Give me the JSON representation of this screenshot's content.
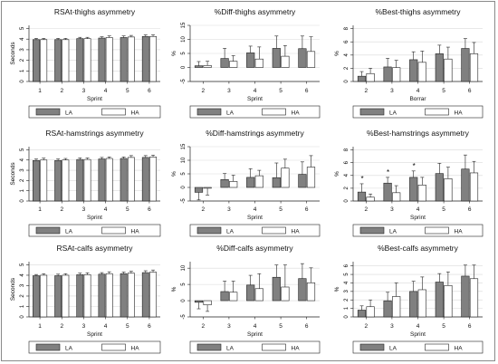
{
  "figure": {
    "colors": {
      "la_fill": "#808080",
      "ha_fill": "#ffffff",
      "stroke": "#222222",
      "grid": "#d9d9d9"
    },
    "legend_entries": [
      "LA",
      "HA"
    ]
  },
  "chart_data": [
    {
      "type": "bar",
      "title": "RSAt-thighs asymmetry",
      "xlabel": "Sprint",
      "ylabel": "Seconds",
      "categories": [
        "1",
        "2",
        "3",
        "4",
        "5",
        "6"
      ],
      "yticks": [
        0,
        1,
        2,
        3,
        4,
        5
      ],
      "ylim": [
        0,
        5.3
      ],
      "legend": "bottom",
      "grid": true,
      "series": [
        {
          "name": "LA",
          "values": [
            3.95,
            3.95,
            4.05,
            4.1,
            4.15,
            4.25
          ],
          "err": [
            0.12,
            0.12,
            0.12,
            0.12,
            0.15,
            0.15
          ]
        },
        {
          "name": "HA",
          "values": [
            3.95,
            3.95,
            4.05,
            4.15,
            4.2,
            4.25
          ],
          "err": [
            0.12,
            0.12,
            0.12,
            0.15,
            0.15,
            0.15
          ]
        }
      ]
    },
    {
      "type": "bar",
      "title": "%Diff-thighs asymmetry",
      "xlabel": "Sprint",
      "ylabel": "%",
      "categories": [
        "2",
        "3",
        "4",
        "5",
        "6"
      ],
      "yticks": [
        -5,
        0,
        5,
        10,
        15
      ],
      "ylim": [
        -5,
        15
      ],
      "legend": "bottom",
      "grid": true,
      "series": [
        {
          "name": "LA",
          "values": [
            0.6,
            3.2,
            5.2,
            6.8,
            6.7
          ],
          "err": [
            1.5,
            3.6,
            2.4,
            4.4,
            4.5
          ]
        },
        {
          "name": "HA",
          "values": [
            0.7,
            2.2,
            3.0,
            4.0,
            5.7
          ],
          "err": [
            1.5,
            2.0,
            4.3,
            3.8,
            5.2
          ]
        }
      ]
    },
    {
      "type": "bar",
      "title": "%Best-thighs asymmetry",
      "xlabel": "Borrar",
      "ylabel": "%",
      "categories": [
        "2",
        "3",
        "4",
        "5",
        "6"
      ],
      "yticks": [
        0,
        2,
        4,
        6,
        8
      ],
      "ylim": [
        0,
        8.5
      ],
      "legend": "bottom",
      "grid": true,
      "series": [
        {
          "name": "LA",
          "values": [
            0.8,
            2.2,
            3.3,
            4.2,
            5.0
          ],
          "err": [
            0.7,
            1.3,
            1.2,
            1.3,
            1.5
          ]
        },
        {
          "name": "HA",
          "values": [
            1.2,
            2.1,
            2.9,
            3.4,
            4.2
          ],
          "err": [
            0.8,
            1.1,
            1.7,
            1.8,
            1.7
          ]
        }
      ]
    },
    {
      "type": "bar",
      "title": "RSAt-hamstrings asymmetry",
      "xlabel": "Sprint",
      "ylabel": "Seconds",
      "categories": [
        "1",
        "2",
        "3",
        "4",
        "5",
        "6"
      ],
      "yticks": [
        0,
        1,
        2,
        3,
        4,
        5
      ],
      "ylim": [
        0,
        5.3
      ],
      "legend": "bottom",
      "grid": true,
      "series": [
        {
          "name": "LA",
          "values": [
            3.95,
            3.95,
            4.05,
            4.1,
            4.15,
            4.25
          ],
          "err": [
            0.15,
            0.15,
            0.15,
            0.15,
            0.15,
            0.18
          ]
        },
        {
          "name": "HA",
          "values": [
            4.0,
            4.0,
            4.05,
            4.15,
            4.25,
            4.3
          ],
          "err": [
            0.18,
            0.15,
            0.15,
            0.15,
            0.18,
            0.18
          ]
        }
      ]
    },
    {
      "type": "bar",
      "title": "%Diff-hamstrings asymmetry",
      "xlabel": "Sprint",
      "ylabel": "%",
      "categories": [
        "2",
        "3",
        "4",
        "5",
        "6"
      ],
      "yticks": [
        -5,
        0,
        5,
        10,
        15
      ],
      "ylim": [
        -5,
        15
      ],
      "legend": "bottom",
      "grid": true,
      "series": [
        {
          "name": "LA",
          "values": [
            -1.8,
            2.9,
            3.7,
            3.6,
            4.8
          ],
          "err": [
            2.8,
            2.2,
            3.2,
            5.4,
            4.6
          ]
        },
        {
          "name": "HA",
          "values": [
            -0.3,
            2.2,
            4.3,
            7.1,
            7.5
          ],
          "err": [
            2.5,
            2.3,
            2.0,
            3.3,
            4.2
          ]
        }
      ]
    },
    {
      "type": "bar",
      "title": "%Best-hamstrings asymmetry",
      "xlabel": "Sprint",
      "ylabel": "%",
      "categories": [
        "2",
        "3",
        "4",
        "5",
        "6"
      ],
      "yticks": [
        0,
        2,
        4,
        6,
        8
      ],
      "ylim": [
        0,
        8.5
      ],
      "legend": "bottom",
      "grid": true,
      "annotations": [
        {
          "category": "2",
          "text": "*"
        },
        {
          "category": "3",
          "text": "*"
        },
        {
          "category": "4",
          "text": "*"
        }
      ],
      "series": [
        {
          "name": "LA",
          "values": [
            1.4,
            2.8,
            3.7,
            4.3,
            5.0
          ],
          "err": [
            1.3,
            0.9,
            1.0,
            1.6,
            2.2
          ]
        },
        {
          "name": "HA",
          "values": [
            0.6,
            1.3,
            2.5,
            3.5,
            4.4
          ],
          "err": [
            0.5,
            1.1,
            1.2,
            1.8,
            1.8
          ]
        }
      ]
    },
    {
      "type": "bar",
      "title": "RSAt-calfs asymmetry",
      "xlabel": "Sprint",
      "ylabel": "Seconds",
      "categories": [
        "1",
        "2",
        "3",
        "4",
        "5",
        "6"
      ],
      "yticks": [
        0,
        1,
        2,
        3,
        4,
        5
      ],
      "ylim": [
        0,
        5.3
      ],
      "legend": "bottom",
      "grid": true,
      "series": [
        {
          "name": "LA",
          "values": [
            3.95,
            3.95,
            4.05,
            4.1,
            4.15,
            4.25
          ],
          "err": [
            0.12,
            0.15,
            0.15,
            0.15,
            0.15,
            0.18
          ]
        },
        {
          "name": "HA",
          "values": [
            4.0,
            4.0,
            4.05,
            4.15,
            4.2,
            4.3
          ],
          "err": [
            0.15,
            0.15,
            0.18,
            0.18,
            0.18,
            0.2
          ]
        }
      ]
    },
    {
      "type": "bar",
      "title": "%Diff-calfs asymmetry",
      "xlabel": "Sprint",
      "ylabel": "%",
      "categories": [
        "2",
        "3",
        "4",
        "5",
        "6"
      ],
      "yticks": [
        -5,
        0,
        5,
        10
      ],
      "ylim": [
        -5,
        12
      ],
      "legend": "bottom",
      "grid": true,
      "series": [
        {
          "name": "LA",
          "values": [
            -0.5,
            2.8,
            4.8,
            7.2,
            6.8
          ],
          "err": [
            2.0,
            3.2,
            3.0,
            3.8,
            4.6
          ]
        },
        {
          "name": "HA",
          "values": [
            -1.3,
            2.6,
            3.7,
            4.2,
            5.5
          ],
          "err": [
            2.0,
            3.4,
            4.6,
            6.8,
            4.6
          ]
        }
      ]
    },
    {
      "type": "bar",
      "title": "%Best-calfs asymmetry",
      "xlabel": "Sprint",
      "ylabel": "%",
      "categories": [
        "2",
        "3",
        "4",
        "5",
        "6"
      ],
      "yticks": [
        0,
        1,
        2,
        3,
        4,
        5,
        6
      ],
      "ylim": [
        0,
        6.5
      ],
      "legend": "bottom",
      "grid": true,
      "series": [
        {
          "name": "LA",
          "values": [
            0.8,
            1.9,
            3.0,
            4.1,
            4.8
          ],
          "err": [
            0.5,
            1.0,
            1.2,
            1.0,
            1.3
          ]
        },
        {
          "name": "HA",
          "values": [
            1.2,
            2.4,
            3.2,
            3.7,
            4.5
          ],
          "err": [
            0.8,
            1.6,
            1.5,
            1.6,
            1.6
          ]
        }
      ]
    }
  ]
}
